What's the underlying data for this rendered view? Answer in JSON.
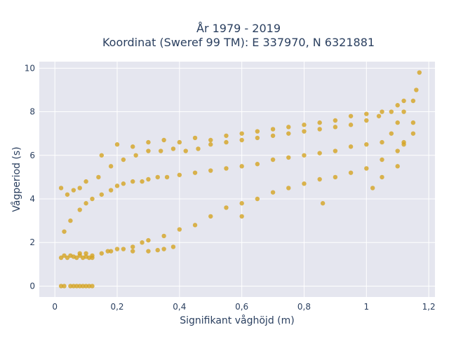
{
  "chart_data": {
    "type": "scatter",
    "title_lines": [
      "År 1979 - 2019",
      "Koordinat (Sweref 99 TM): E 337970, N 6321881"
    ],
    "xlabel": "Signifikant våghöjd (m)",
    "ylabel": "Vågperiod (s)",
    "xlim": [
      -0.05,
      1.22
    ],
    "ylim": [
      -0.5,
      10.3
    ],
    "xticks": [
      0,
      0.2,
      0.4,
      0.6,
      0.8,
      1,
      1.2
    ],
    "xtick_labels": [
      "0",
      "0,2",
      "0,4",
      "0,6",
      "0,8",
      "1",
      "1,2"
    ],
    "yticks": [
      0,
      2,
      4,
      6,
      8,
      10
    ],
    "ytick_labels": [
      "0",
      "2",
      "4",
      "6",
      "8",
      "10"
    ],
    "grid": true,
    "legend": "none",
    "colors": {
      "marker": "#d4a422",
      "plot_bg": "#e5e6ef",
      "grid": "#ffffff"
    },
    "series": [
      {
        "x": [
          0.02,
          0.03,
          0.04,
          0.05,
          0.06,
          0.07,
          0.08,
          0.09,
          0.1,
          0.11,
          0.12,
          0.08,
          0.1,
          0.12,
          0.15,
          0.18,
          0.2,
          0.22,
          0.25,
          0.28,
          0.3,
          0.35,
          0.4,
          0.45,
          0.5,
          0.55,
          0.6,
          0.65,
          0.7,
          0.75,
          0.8,
          0.85,
          0.9,
          0.95,
          1.0,
          1.05,
          1.1,
          1.12,
          1.15,
          0.03,
          0.05,
          0.08,
          0.1,
          0.12,
          0.15,
          0.18,
          0.2,
          0.22,
          0.25,
          0.28,
          0.3,
          0.33,
          0.36,
          0.4,
          0.45,
          0.5,
          0.55,
          0.6,
          0.65,
          0.7,
          0.75,
          0.8,
          0.85,
          0.9,
          0.95,
          1.0,
          1.05,
          1.08,
          1.1,
          1.12,
          1.15,
          0.02,
          0.04,
          0.06,
          0.08,
          0.1,
          0.14,
          0.18,
          0.22,
          0.26,
          0.3,
          0.34,
          0.38,
          0.42,
          0.46,
          0.5,
          0.55,
          0.6,
          0.65,
          0.7,
          0.75,
          0.8,
          0.85,
          0.9,
          0.95,
          1.0,
          1.04,
          1.08,
          1.12,
          1.16,
          0.15,
          0.2,
          0.25,
          0.3,
          0.35,
          0.4,
          0.45,
          0.5,
          0.55,
          0.6,
          0.65,
          0.7,
          0.75,
          0.8,
          0.85,
          0.9,
          0.95,
          1.0,
          1.05,
          1.1,
          0.17,
          0.25,
          0.3,
          0.33,
          0.35,
          0.38,
          0.6,
          0.86,
          1.02,
          1.05,
          1.1,
          1.12,
          1.15,
          1.17,
          0.03,
          0.02,
          0.05,
          0.06,
          0.07,
          0.08,
          0.09,
          0.1,
          0.11,
          0.12
        ],
        "y": [
          1.3,
          1.4,
          1.3,
          1.4,
          1.35,
          1.3,
          1.4,
          1.3,
          1.35,
          1.3,
          1.3,
          1.5,
          1.5,
          1.4,
          1.5,
          1.6,
          1.7,
          1.7,
          1.8,
          2.0,
          2.1,
          2.3,
          2.6,
          2.8,
          3.2,
          3.6,
          3.8,
          4.0,
          4.3,
          4.5,
          4.7,
          4.9,
          5.0,
          5.2,
          5.4,
          5.8,
          6.2,
          6.6,
          7.0,
          2.5,
          3.0,
          3.5,
          3.8,
          4.0,
          4.2,
          4.4,
          4.6,
          4.7,
          4.8,
          4.8,
          4.9,
          5.0,
          5.0,
          5.1,
          5.2,
          5.3,
          5.4,
          5.5,
          5.6,
          5.8,
          5.9,
          6.0,
          6.1,
          6.2,
          6.4,
          6.5,
          6.6,
          7.0,
          7.5,
          8.0,
          8.5,
          4.5,
          4.2,
          4.4,
          4.5,
          4.8,
          5.0,
          5.5,
          5.8,
          6.0,
          6.2,
          6.2,
          6.3,
          6.2,
          6.3,
          6.5,
          6.6,
          6.7,
          6.8,
          6.9,
          7.0,
          7.1,
          7.2,
          7.3,
          7.4,
          7.6,
          7.8,
          8.0,
          8.5,
          9.0,
          6.0,
          6.5,
          6.4,
          6.6,
          6.7,
          6.6,
          6.8,
          6.7,
          6.9,
          7.0,
          7.1,
          7.2,
          7.3,
          7.4,
          7.5,
          7.6,
          7.8,
          7.9,
          8.0,
          8.3,
          1.6,
          1.6,
          1.6,
          1.65,
          1.7,
          1.8,
          3.2,
          3.8,
          4.5,
          5.0,
          5.5,
          6.5,
          7.5,
          9.8,
          0.0,
          0.0,
          0.0,
          0.0,
          0.0,
          0.0,
          0.0,
          0.0,
          0.0,
          0.0
        ]
      }
    ]
  }
}
